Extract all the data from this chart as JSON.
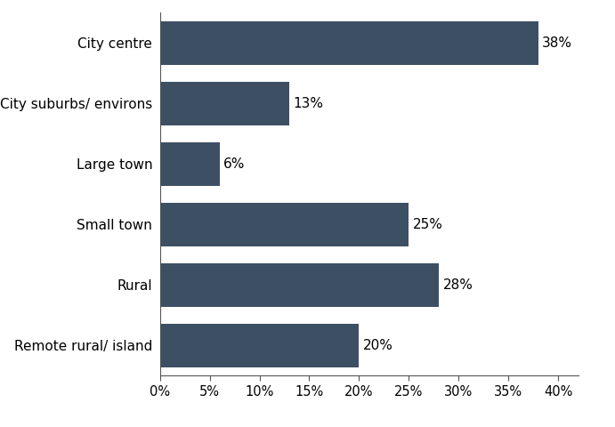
{
  "categories": [
    "City centre",
    "City suburbs/ environs",
    "Large town",
    "Small town",
    "Rural",
    "Remote rural/ island"
  ],
  "values": [
    38,
    13,
    6,
    25,
    28,
    20
  ],
  "bar_color": "#3d4f63",
  "background_color": "#ffffff",
  "xlim": [
    0,
    42
  ],
  "xticks": [
    0,
    5,
    10,
    15,
    20,
    25,
    30,
    35,
    40
  ],
  "label_fontsize": 11,
  "tick_fontsize": 10.5,
  "value_fontsize": 11,
  "bar_height": 0.72,
  "figsize": [
    6.91,
    4.8
  ],
  "dpi": 100
}
